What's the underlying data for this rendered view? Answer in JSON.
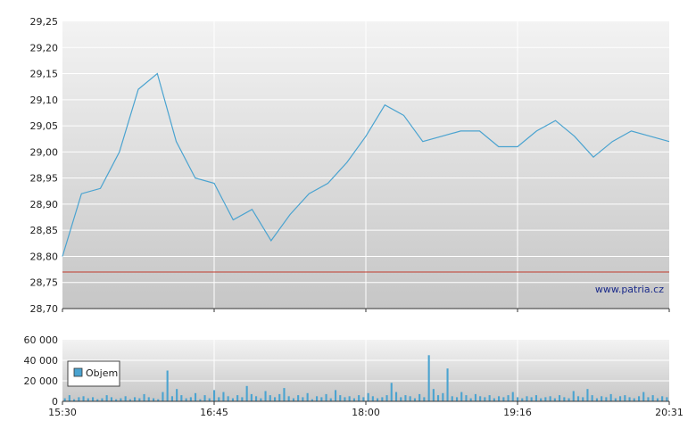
{
  "watermark": "www.patria.cz",
  "legend": {
    "label": "Objem"
  },
  "colors": {
    "price_line": "#4aa3d0",
    "reference_line": "#c03a2b",
    "volume_bar": "#4aa3d0",
    "grid": "#ffffff",
    "panel_top": "#f2f2f2",
    "panel_bottom": "#c8c8c8"
  },
  "chart_data": [
    {
      "type": "line",
      "title": "",
      "xlabel": "",
      "ylabel": "",
      "x_ticks": [
        "15:30",
        "16:45",
        "18:00",
        "19:16",
        "20:31"
      ],
      "ylim": [
        28.7,
        29.25
      ],
      "y_ticks": [
        "29,25",
        "29,20",
        "29,15",
        "29,10",
        "29,05",
        "29,00",
        "28,95",
        "28,90",
        "28,85",
        "28,80",
        "28,75",
        "28,70"
      ],
      "reference_line": 28.77,
      "grid": true,
      "x": [
        "15:30",
        "15:40",
        "15:50",
        "16:00",
        "16:10",
        "16:20",
        "16:30",
        "16:40",
        "16:45",
        "16:55",
        "17:05",
        "17:15",
        "17:25",
        "17:35",
        "17:45",
        "17:55",
        "18:00",
        "18:10",
        "18:20",
        "18:30",
        "18:40",
        "18:50",
        "19:00",
        "19:10",
        "19:16",
        "19:25",
        "19:35",
        "19:45",
        "19:55",
        "20:05",
        "20:15",
        "20:25",
        "20:31"
      ],
      "series": [
        {
          "values": [
            28.8,
            28.92,
            28.93,
            29.0,
            29.12,
            29.15,
            29.02,
            28.95,
            28.94,
            28.87,
            28.89,
            28.83,
            28.88,
            28.92,
            28.94,
            28.98,
            29.03,
            29.09,
            29.07,
            29.02,
            29.03,
            29.04,
            29.04,
            29.01,
            29.01,
            29.04,
            29.06,
            29.03,
            28.99,
            29.02,
            29.04,
            29.03,
            29.02
          ]
        }
      ]
    },
    {
      "type": "bar",
      "title": "",
      "xlabel": "",
      "ylabel": "",
      "x_ticks": [
        "15:30",
        "16:45",
        "18:00",
        "19:16",
        "20:31"
      ],
      "ylim": [
        0,
        60000
      ],
      "y_ticks": [
        "60 000",
        "40 000",
        "20 000",
        "0"
      ],
      "grid": true,
      "legend_position": "left",
      "series": [
        {
          "name": "Objem",
          "values": [
            3000,
            6000,
            2000,
            4000,
            5000,
            3000,
            4000,
            2000,
            3000,
            6000,
            4000,
            2000,
            3000,
            5000,
            2000,
            4000,
            3000,
            7000,
            4000,
            3000,
            2000,
            9000,
            30000,
            5000,
            12000,
            6000,
            3000,
            4000,
            8000,
            2000,
            6000,
            3000,
            11000,
            4000,
            9000,
            5000,
            3000,
            6000,
            4000,
            15000,
            7000,
            5000,
            3000,
            10000,
            6000,
            4000,
            7000,
            13000,
            5000,
            3000,
            6000,
            4000,
            8000,
            2000,
            5000,
            4000,
            7000,
            3000,
            11000,
            6000,
            4000,
            5000,
            3000,
            6000,
            4000,
            8000,
            5000,
            3000,
            4000,
            6000,
            18000,
            9000,
            4000,
            6000,
            5000,
            3000,
            7000,
            4000,
            45000,
            12000,
            6000,
            8000,
            32000,
            5000,
            4000,
            9000,
            6000,
            3000,
            7000,
            5000,
            4000,
            6000,
            3000,
            5000,
            4000,
            6000,
            9000,
            4000,
            3000,
            5000,
            4000,
            6000,
            3000,
            4000,
            5000,
            3000,
            6000,
            4000,
            3000,
            10000,
            5000,
            4000,
            12000,
            6000,
            3000,
            5000,
            4000,
            7000,
            3000,
            5000,
            6000,
            4000,
            3000,
            5000,
            9000,
            4000,
            6000,
            3000,
            5000,
            4000
          ]
        }
      ]
    }
  ]
}
